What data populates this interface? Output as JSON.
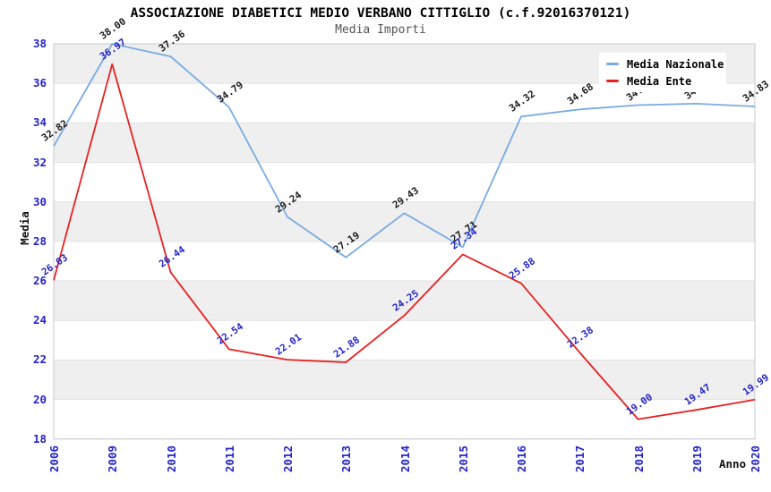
{
  "header": {
    "title": "ASSOCIAZIONE DIABETICI MEDIO VERBANO CITTIGLIO (c.f.92016370121)",
    "subtitle": "Media Importi"
  },
  "chart_data": {
    "type": "line",
    "title": "ASSOCIAZIONE DIABETICI MEDIO VERBANO CITTIGLIO (c.f.92016370121)",
    "subtitle": "Media Importi",
    "xlabel": "Anno",
    "ylabel": "Media",
    "ylim": [
      18,
      38
    ],
    "yticks": [
      18,
      20,
      22,
      24,
      26,
      28,
      30,
      32,
      34,
      36,
      38
    ],
    "categories": [
      "2006",
      "2009",
      "2010",
      "2011",
      "2012",
      "2013",
      "2014",
      "2015",
      "2016",
      "2017",
      "2018",
      "2019",
      "2020"
    ],
    "series": [
      {
        "name": "Media Nazionale",
        "color": "#79abe2",
        "label_color": "#1a1a1a",
        "values": [
          32.82,
          38.0,
          37.36,
          34.79,
          29.24,
          27.19,
          29.43,
          27.71,
          34.32,
          34.68,
          34.9,
          34.97,
          34.83
        ]
      },
      {
        "name": "Media Ente",
        "color": "#e62222",
        "label_color": "#2323c8",
        "values": [
          26.03,
          36.97,
          26.44,
          22.54,
          22.01,
          21.88,
          24.25,
          27.34,
          25.88,
          22.38,
          19.0,
          19.47,
          19.99
        ]
      }
    ],
    "legend_position": "top-right",
    "grid": "alternating-horizontal-bands",
    "band_color": "#efefef",
    "gridline_color": "#e2e2e2",
    "frame_color": "#c9c9c9",
    "tick_color": "#2323c8"
  },
  "legend": {
    "items": [
      {
        "label": "Media Nazionale",
        "color": "#79abe2"
      },
      {
        "label": "Media Ente",
        "color": "#e62222"
      }
    ]
  }
}
